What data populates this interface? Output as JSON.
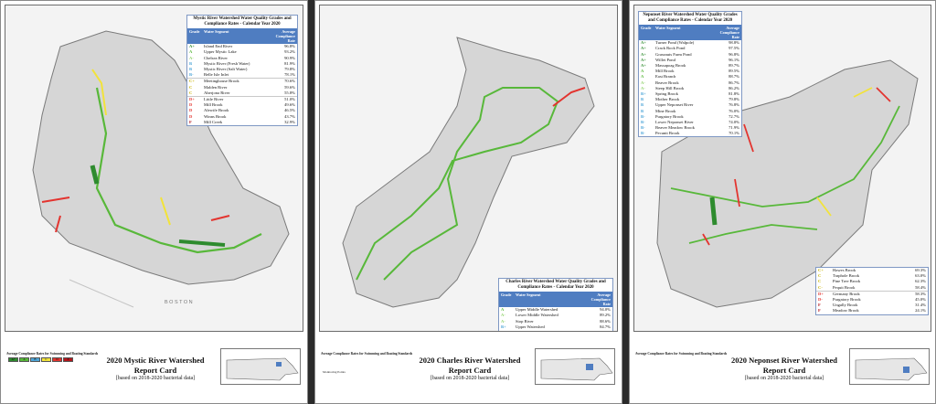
{
  "colors": {
    "A_plus": "#2e8b2e",
    "A": "#58b83a",
    "A_minus": "#8fd26a",
    "B": "#4ea6d8",
    "C": "#f2e33a",
    "D": "#e3342f",
    "F": "#b2151b",
    "header_blue": "#4f7dc1",
    "land": "#d9d9d9",
    "river_gray": "#bdbdbd"
  },
  "mystic": {
    "box_title": "Mystic River Watershed Water Quality Grades and Compliance Rates - Calendar Year 2020",
    "hdr_grade": "Grade",
    "hdr_segment": "Water Segment",
    "hdr_rate": "Average Compliance Rate",
    "rows": [
      {
        "grade": "A+",
        "segment": "Island End River",
        "rate": "96.8%"
      },
      {
        "grade": "A",
        "segment": "Upper Mystic Lake",
        "rate": "93.2%"
      },
      {
        "grade": "A-",
        "segment": "Chelsea River",
        "rate": "90.9%"
      },
      {
        "grade": "B",
        "segment": "Mystic River (Fresh Water)",
        "rate": "81.9%"
      },
      {
        "grade": "B",
        "segment": "Mystic River (Salt Water)",
        "rate": "79.8%"
      },
      {
        "grade": "B-",
        "segment": "Belle Isle Inlet",
        "rate": "78.1%"
      },
      {
        "grade": "C+",
        "segment": "Meetinghouse Brook",
        "rate": "70.6%"
      },
      {
        "grade": "C",
        "segment": "Malden River",
        "rate": "59.6%"
      },
      {
        "grade": "C",
        "segment": "Aberjona River",
        "rate": "55.8%"
      },
      {
        "grade": "D+",
        "segment": "Little River",
        "rate": "51.0%"
      },
      {
        "grade": "D",
        "segment": "Mill Brook",
        "rate": "49.6%"
      },
      {
        "grade": "D",
        "segment": "Alewife Brook",
        "rate": "46.5%"
      },
      {
        "grade": "D",
        "segment": "Winns Brook",
        "rate": "43.7%"
      },
      {
        "grade": "F",
        "segment": "Mill Creek",
        "rate": "32.9%"
      }
    ],
    "title": "2020 Mystic River Watershed Report Card",
    "subtitle": "[based on 2018-2020 bacterial data]",
    "place_boston": "BOSTON"
  },
  "charles": {
    "box_title": "Charles River Watershed Water Quality Grades and Compliance Rates - Calendar Year 2020",
    "hdr_grade": "Grade",
    "hdr_segment": "Water Segment",
    "hdr_rate": "Average Compliance Rate",
    "rows": [
      {
        "grade": "A",
        "segment": "Upper Middle Watershed",
        "rate": "94.0%"
      },
      {
        "grade": "A-",
        "segment": "Lower Middle Watershed",
        "rate": "89.2%"
      },
      {
        "grade": "A-",
        "segment": "Stop River",
        "rate": "88.6%"
      },
      {
        "grade": "B+",
        "segment": "Upper Watershed",
        "rate": "84.7%"
      },
      {
        "grade": "B-",
        "segment": "Lower Basin",
        "rate": "71.2%"
      },
      {
        "grade": "D-",
        "segment": "Muddy River",
        "rate": "42.7%"
      }
    ],
    "title": "2020 Charles River Watershed Report Card",
    "subtitle": "[based on 2018-2020 bacterial data]"
  },
  "neponset": {
    "box_title": "Neponset River Watershed Water Quality Grades and Compliance Rates - Calendar Year 2020",
    "hdr_grade": "Grade",
    "hdr_segment": "Water Segment",
    "hdr_rate": "Average Compliance Rate",
    "rows": [
      {
        "grade": "A+",
        "segment": "Turner Pond (Walpole)",
        "rate": "98.8%"
      },
      {
        "grade": "A+",
        "segment": "Crack Rock Pond",
        "rate": "97.5%"
      },
      {
        "grade": "A+",
        "segment": "Grassnuts Farm Pond",
        "rate": "96.8%"
      },
      {
        "grade": "A+",
        "segment": "Willet Pond",
        "rate": "96.1%"
      },
      {
        "grade": "A+",
        "segment": "Massapoag Brook",
        "rate": "89.7%"
      },
      {
        "grade": "A",
        "segment": "Mill Brook",
        "rate": "89.5%"
      },
      {
        "grade": "A",
        "segment": "East Branch",
        "rate": "88.7%"
      },
      {
        "grade": "A-",
        "segment": "Beaver Brook",
        "rate": "86.7%"
      },
      {
        "grade": "A-",
        "segment": "Steep Hill Brook",
        "rate": "86.2%"
      },
      {
        "grade": "B+",
        "segment": "Spring Brook",
        "rate": "81.8%"
      },
      {
        "grade": "B",
        "segment": "Mother Brook",
        "rate": "79.8%"
      },
      {
        "grade": "B",
        "segment": "Upper Neponset River",
        "rate": "76.8%"
      },
      {
        "grade": "B",
        "segment": "Mine Brook",
        "rate": "76.0%"
      },
      {
        "grade": "B-",
        "segment": "Purgatory Brook",
        "rate": "72.7%"
      },
      {
        "grade": "B-",
        "segment": "Lower Neponset River",
        "rate": "74.0%"
      },
      {
        "grade": "B-",
        "segment": "Beaver Meadow Brook",
        "rate": "71.9%"
      },
      {
        "grade": "B-",
        "segment": "Pecunit Brook",
        "rate": "70.1%"
      }
    ],
    "rows2": [
      {
        "grade": "C+",
        "segment": "Hawes Brook",
        "rate": "69.3%"
      },
      {
        "grade": "C",
        "segment": "Traphole Brook",
        "rate": "63.0%"
      },
      {
        "grade": "C",
        "segment": "Pine Tree Brook",
        "rate": "62.3%"
      },
      {
        "grade": "C-",
        "segment": "Pequit Brook",
        "rate": "58.4%"
      },
      {
        "grade": "D+",
        "segment": "Germany Brook",
        "rate": "58.3%"
      },
      {
        "grade": "D-",
        "segment": "Purgatory Brook",
        "rate": "45.0%"
      },
      {
        "grade": "F",
        "segment": "Ungally Brook",
        "rate": "31.4%"
      },
      {
        "grade": "F",
        "segment": "Meadow Brook",
        "rate": "24.1%"
      }
    ],
    "title": "2020 Neponset River Watershed Report Card",
    "subtitle": "[based on 2018-2020 bacterial data]"
  },
  "legend": {
    "title": "Average Compliance Rates for Swimming and Boating Standards",
    "grades": [
      "A+",
      "A",
      "B",
      "C",
      "D",
      "F"
    ],
    "monitoring": "Monitoring Points"
  }
}
